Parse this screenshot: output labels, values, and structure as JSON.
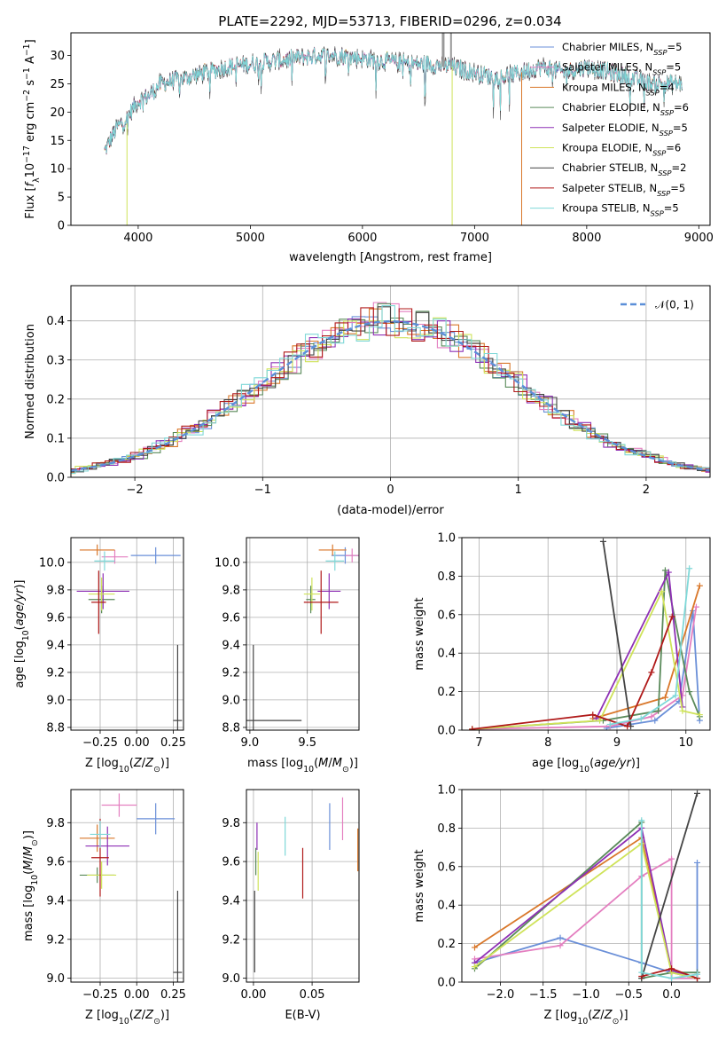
{
  "figure_title": "PLATE=2292, MJD=53713, FIBERID=0296, z=0.034",
  "colors": {
    "Chabrier MILES": "#6a8fd8",
    "Salpeter MILES": "#e47fc0",
    "Kroupa MILES": "#d9772a",
    "Chabrier ELODIE": "#5a8a5a",
    "Salpeter ELODIE": "#8e30b5",
    "Kroupa ELODIE": "#cfe35a",
    "Chabrier STELIB": "#444444",
    "Salpeter STELIB": "#b01a1a",
    "Kroupa STELIB": "#7fd8d8",
    "normal": "#5b8fd8"
  },
  "chart_data": [
    {
      "id": "spectrum",
      "type": "line",
      "title": "PLATE=2292, MJD=53713, FIBERID=0296, z=0.034",
      "xlabel": "wavelength [Angstrom, rest frame]",
      "ylabel": "Flux [f_λ10^-17 erg cm^-2 s^-1 A^-1]",
      "xlim": [
        3400,
        9100
      ],
      "ylim": [
        0,
        34
      ],
      "xticks": [
        4000,
        5000,
        6000,
        7000,
        8000,
        9000
      ],
      "yticks": [
        0,
        5,
        10,
        15,
        20,
        25,
        30
      ],
      "legend_position": "top-right",
      "legend": [
        {
          "name": "Chabrier MILES",
          "nssp": "5"
        },
        {
          "name": "Salpeter MILES",
          "nssp": "5"
        },
        {
          "name": "Kroupa MILES",
          "nssp": "4"
        },
        {
          "name": "Chabrier ELODIE",
          "nssp": "6"
        },
        {
          "name": "Salpeter ELODIE",
          "nssp": "5"
        },
        {
          "name": "Kroupa ELODIE",
          "nssp": "6"
        },
        {
          "name": "Chabrier STELIB",
          "nssp": "2"
        },
        {
          "name": "Salpeter STELIB",
          "nssp": "5"
        },
        {
          "name": "Kroupa STELIB",
          "nssp": "5"
        }
      ],
      "continuum": [
        [
          3700,
          13
        ],
        [
          3800,
          17
        ],
        [
          3900,
          19
        ],
        [
          4000,
          22
        ],
        [
          4100,
          23
        ],
        [
          4200,
          25
        ],
        [
          4400,
          26
        ],
        [
          4600,
          27
        ],
        [
          4800,
          28
        ],
        [
          5000,
          28.5
        ],
        [
          5200,
          29
        ],
        [
          5400,
          29.5
        ],
        [
          5600,
          30
        ],
        [
          5800,
          30
        ],
        [
          6000,
          29.5
        ],
        [
          6200,
          29
        ],
        [
          6400,
          28.5
        ],
        [
          6600,
          28.5
        ],
        [
          6800,
          28
        ],
        [
          7000,
          27
        ],
        [
          7200,
          26
        ],
        [
          7400,
          27
        ],
        [
          7600,
          28
        ],
        [
          7800,
          27
        ],
        [
          8000,
          28
        ],
        [
          8200,
          27
        ],
        [
          8400,
          26
        ],
        [
          8600,
          25
        ],
        [
          8850,
          25
        ]
      ]
    },
    {
      "id": "residuals",
      "type": "step",
      "xlabel": "(data-model)/error",
      "ylabel": "Normed distribution",
      "xlim": [
        -2.5,
        2.5
      ],
      "ylim": [
        0,
        0.49
      ],
      "xticks": [
        -2,
        -1,
        0,
        1,
        2
      ],
      "yticks": [
        0.0,
        0.1,
        0.2,
        0.3,
        0.4
      ],
      "grid": true,
      "legend_position": "top-right",
      "legend_label": "N(0, 1)",
      "bin_width": 0.1
    },
    {
      "id": "age-vs-Z",
      "type": "errorbar",
      "xlabel": "Z [log10(Z/Z⊙)]",
      "ylabel": "age [log10(age/yr)]",
      "xlim": [
        -0.45,
        0.32
      ],
      "ylim": [
        8.78,
        10.18
      ],
      "xticks": [
        -0.25,
        0.0,
        0.25
      ],
      "yticks": [
        8.8,
        9.0,
        9.2,
        9.4,
        9.6,
        9.8,
        10.0
      ],
      "grid": true,
      "points": [
        {
          "model": "Chabrier MILES",
          "x": 0.13,
          "y": 10.05,
          "xerr": 0.17,
          "yerr": 0.06
        },
        {
          "model": "Salpeter MILES",
          "x": -0.15,
          "y": 10.04,
          "xerr": 0.09,
          "yerr": 0.05
        },
        {
          "model": "Kroupa MILES",
          "x": -0.27,
          "y": 10.09,
          "xerr": 0.12,
          "yerr": 0.04
        },
        {
          "model": "Chabrier ELODIE",
          "x": -0.24,
          "y": 9.73,
          "xerr": 0.09,
          "yerr": 0.1
        },
        {
          "model": "Salpeter ELODIE",
          "x": -0.23,
          "y": 9.79,
          "xerr": 0.18,
          "yerr": 0.13
        },
        {
          "model": "Kroupa ELODIE",
          "x": -0.24,
          "y": 9.77,
          "xerr": 0.09,
          "yerr": 0.12
        },
        {
          "model": "Chabrier STELIB",
          "x": 0.28,
          "y": 8.85,
          "xerr": 0.03,
          "yerr": 0.55
        },
        {
          "model": "Salpeter STELIB",
          "x": -0.26,
          "y": 9.71,
          "xerr": 0.05,
          "yerr": 0.23
        },
        {
          "model": "Kroupa STELIB",
          "x": -0.22,
          "y": 10.01,
          "xerr": 0.07,
          "yerr": 0.07
        }
      ]
    },
    {
      "id": "age-vs-mass",
      "type": "errorbar",
      "xlabel": "mass [log10(M/M⊙)]",
      "ylabel": "",
      "xlim": [
        8.97,
        9.95
      ],
      "ylim": [
        8.78,
        10.18
      ],
      "xticks": [
        9.0,
        9.5
      ],
      "yticks": [
        8.8,
        9.0,
        9.2,
        9.4,
        9.6,
        9.8,
        10.0
      ],
      "grid": true,
      "points": [
        {
          "model": "Chabrier MILES",
          "x": 9.83,
          "y": 10.05,
          "xerr": 0.12,
          "yerr": 0.06
        },
        {
          "model": "Salpeter MILES",
          "x": 9.89,
          "y": 10.05,
          "xerr": 0.06,
          "yerr": 0.05
        },
        {
          "model": "Kroupa MILES",
          "x": 9.72,
          "y": 10.09,
          "xerr": 0.12,
          "yerr": 0.04
        },
        {
          "model": "Chabrier ELODIE",
          "x": 9.53,
          "y": 9.73,
          "xerr": 0.04,
          "yerr": 0.1
        },
        {
          "model": "Salpeter ELODIE",
          "x": 9.69,
          "y": 9.79,
          "xerr": 0.1,
          "yerr": 0.13
        },
        {
          "model": "Kroupa ELODIE",
          "x": 9.54,
          "y": 9.77,
          "xerr": 0.07,
          "yerr": 0.12
        },
        {
          "model": "Chabrier STELIB",
          "x": 9.03,
          "y": 8.85,
          "xerr": 0.42,
          "yerr": 0.55
        },
        {
          "model": "Salpeter STELIB",
          "x": 9.62,
          "y": 9.71,
          "xerr": 0.15,
          "yerr": 0.23
        },
        {
          "model": "Kroupa STELIB",
          "x": 9.74,
          "y": 10.01,
          "xerr": 0.08,
          "yerr": 0.07
        }
      ]
    },
    {
      "id": "weight-vs-age",
      "type": "line",
      "xlabel": "age [log10(age/yr)]",
      "ylabel": "mass weight",
      "xlim": [
        6.75,
        10.35
      ],
      "ylim": [
        0,
        1.0
      ],
      "xticks": [
        7,
        8,
        9,
        10
      ],
      "yticks": [
        0.0,
        0.2,
        0.4,
        0.6,
        0.8,
        1.0
      ],
      "grid": true,
      "series": [
        {
          "model": "Chabrier MILES",
          "points": [
            [
              8.85,
              0.01
            ],
            [
              9.2,
              0.03
            ],
            [
              9.55,
              0.05
            ],
            [
              9.9,
              0.15
            ],
            [
              10.1,
              0.62
            ],
            [
              10.2,
              0.05
            ]
          ]
        },
        {
          "model": "Salpeter MILES",
          "points": [
            [
              6.9,
              0.005
            ],
            [
              8.9,
              0.02
            ],
            [
              9.5,
              0.07
            ],
            [
              9.95,
              0.18
            ],
            [
              10.15,
              0.64
            ]
          ]
        },
        {
          "model": "Kroupa MILES",
          "points": [
            [
              8.65,
              0.06
            ],
            [
              9.7,
              0.17
            ],
            [
              10.2,
              0.75
            ]
          ]
        },
        {
          "model": "Chabrier ELODIE",
          "points": [
            [
              6.9,
              0.005
            ],
            [
              8.8,
              0.05
            ],
            [
              9.6,
              0.1
            ],
            [
              9.7,
              0.83
            ],
            [
              10.05,
              0.2
            ],
            [
              10.2,
              0.07
            ]
          ]
        },
        {
          "model": "Salpeter ELODIE",
          "points": [
            [
              8.7,
              0.06
            ],
            [
              9.75,
              0.82
            ],
            [
              9.95,
              0.12
            ]
          ]
        },
        {
          "model": "Kroupa ELODIE",
          "points": [
            [
              6.9,
              0.005
            ],
            [
              8.75,
              0.05
            ],
            [
              9.65,
              0.72
            ],
            [
              9.95,
              0.1
            ],
            [
              10.2,
              0.08
            ]
          ]
        },
        {
          "model": "Chabrier STELIB",
          "points": [
            [
              8.8,
              0.98
            ],
            [
              9.2,
              0.02
            ]
          ]
        },
        {
          "model": "Salpeter STELIB",
          "points": [
            [
              6.9,
              0.005
            ],
            [
              8.65,
              0.08
            ],
            [
              9.15,
              0.02
            ],
            [
              9.5,
              0.3
            ],
            [
              9.8,
              0.59
            ]
          ]
        },
        {
          "model": "Kroupa STELIB",
          "points": [
            [
              8.9,
              0.03
            ],
            [
              9.35,
              0.06
            ],
            [
              9.85,
              0.18
            ],
            [
              10.05,
              0.84
            ]
          ]
        }
      ]
    },
    {
      "id": "mass-vs-Z",
      "type": "errorbar",
      "xlabel": "Z [log10(Z/Z⊙)]",
      "ylabel": "mass [log10(M/M⊙)]",
      "xlim": [
        -0.45,
        0.32
      ],
      "ylim": [
        8.98,
        9.97
      ],
      "xticks": [
        -0.25,
        0.0,
        0.25
      ],
      "yticks": [
        9.0,
        9.2,
        9.4,
        9.6,
        9.8
      ],
      "grid": true,
      "points": [
        {
          "model": "Chabrier MILES",
          "x": 0.13,
          "y": 9.82,
          "xerr": 0.13,
          "yerr": 0.08
        },
        {
          "model": "Salpeter MILES",
          "x": -0.12,
          "y": 9.89,
          "xerr": 0.12,
          "yerr": 0.06
        },
        {
          "model": "Kroupa MILES",
          "x": -0.27,
          "y": 9.72,
          "xerr": 0.12,
          "yerr": 0.07
        },
        {
          "model": "Chabrier ELODIE",
          "x": -0.27,
          "y": 9.53,
          "xerr": 0.12,
          "yerr": 0.04
        },
        {
          "model": "Salpeter ELODIE",
          "x": -0.2,
          "y": 9.68,
          "xerr": 0.15,
          "yerr": 0.1
        },
        {
          "model": "Kroupa ELODIE",
          "x": -0.24,
          "y": 9.53,
          "xerr": 0.1,
          "yerr": 0.07
        },
        {
          "model": "Chabrier STELIB",
          "x": 0.28,
          "y": 9.03,
          "xerr": 0.03,
          "yerr": 0.42
        },
        {
          "model": "Salpeter STELIB",
          "x": -0.25,
          "y": 9.62,
          "xerr": 0.06,
          "yerr": 0.2
        },
        {
          "model": "Kroupa STELIB",
          "x": -0.25,
          "y": 9.74,
          "xerr": 0.07,
          "yerr": 0.07
        }
      ]
    },
    {
      "id": "mass-vs-ebv",
      "type": "errorbar",
      "xlabel": "E(B-V)",
      "ylabel": "",
      "xlim": [
        -0.006,
        0.09
      ],
      "ylim": [
        8.98,
        9.97
      ],
      "xticks": [
        0.0,
        0.05
      ],
      "yticks": [
        9.0,
        9.2,
        9.4,
        9.6,
        9.8
      ],
      "grid": true,
      "points": [
        {
          "model": "Chabrier MILES",
          "x": 0.065,
          "y": 9.78,
          "yerr": 0.12
        },
        {
          "model": "Salpeter MILES",
          "x": 0.076,
          "y": 9.82,
          "yerr": 0.11
        },
        {
          "model": "Kroupa MILES",
          "x": 0.089,
          "y": 9.66,
          "yerr": 0.11
        },
        {
          "model": "Chabrier ELODIE",
          "x": 0.002,
          "y": 9.6,
          "yerr": 0.07
        },
        {
          "model": "Salpeter ELODIE",
          "x": 0.003,
          "y": 9.73,
          "yerr": 0.07
        },
        {
          "model": "Kroupa ELODIE",
          "x": 0.004,
          "y": 9.55,
          "yerr": 0.1
        },
        {
          "model": "Chabrier STELIB",
          "x": 0.001,
          "y": 9.24,
          "yerr": 0.21
        },
        {
          "model": "Salpeter STELIB",
          "x": 0.042,
          "y": 9.54,
          "yerr": 0.13
        },
        {
          "model": "Kroupa STELIB",
          "x": 0.027,
          "y": 9.73,
          "yerr": 0.1
        }
      ]
    },
    {
      "id": "weight-vs-Z",
      "type": "line",
      "xlabel": "Z [log10(Z/Z⊙)]",
      "ylabel": "mass weight",
      "xlim": [
        -2.45,
        0.45
      ],
      "ylim": [
        0,
        1.0
      ],
      "xticks": [
        -2.0,
        -1.5,
        -1.0,
        -0.5,
        0.0
      ],
      "yticks": [
        0.0,
        0.2,
        0.4,
        0.6,
        0.8,
        1.0
      ],
      "grid": true,
      "series": [
        {
          "model": "Chabrier MILES",
          "points": [
            [
              -2.3,
              0.1
            ],
            [
              -1.3,
              0.23
            ],
            [
              -0.35,
              0.1
            ],
            [
              0.0,
              0.05
            ],
            [
              0.3,
              0.02
            ],
            [
              0.3,
              0.62
            ]
          ]
        },
        {
          "model": "Salpeter MILES",
          "points": [
            [
              -2.3,
              0.12
            ],
            [
              -1.3,
              0.19
            ],
            [
              -0.35,
              0.55
            ],
            [
              0.0,
              0.64
            ],
            [
              0.0,
              0.02
            ],
            [
              0.3,
              0.02
            ]
          ]
        },
        {
          "model": "Kroupa MILES",
          "points": [
            [
              -2.3,
              0.18
            ],
            [
              -0.35,
              0.75
            ],
            [
              0.0,
              0.05
            ],
            [
              0.3,
              0.02
            ]
          ]
        },
        {
          "model": "Chabrier ELODIE",
          "points": [
            [
              -2.3,
              0.07
            ],
            [
              -0.35,
              0.83
            ],
            [
              -0.35,
              0.02
            ],
            [
              0.0,
              0.05
            ],
            [
              0.3,
              0.05
            ]
          ]
        },
        {
          "model": "Salpeter ELODIE",
          "points": [
            [
              -2.3,
              0.1
            ],
            [
              -0.35,
              0.8
            ],
            [
              0.0,
              0.06
            ],
            [
              0.3,
              0.02
            ]
          ]
        },
        {
          "model": "Kroupa ELODIE",
          "points": [
            [
              -2.3,
              0.08
            ],
            [
              -0.35,
              0.72
            ],
            [
              0.0,
              0.05
            ],
            [
              0.3,
              0.02
            ]
          ]
        },
        {
          "model": "Chabrier STELIB",
          "points": [
            [
              -0.35,
              0.02
            ],
            [
              0.3,
              0.98
            ]
          ]
        },
        {
          "model": "Salpeter STELIB",
          "points": [
            [
              -0.35,
              0.03
            ],
            [
              0.0,
              0.07
            ],
            [
              0.3,
              0.02
            ]
          ]
        },
        {
          "model": "Kroupa STELIB",
          "points": [
            [
              -0.35,
              0.84
            ],
            [
              -0.35,
              0.05
            ],
            [
              0.0,
              0.02
            ],
            [
              0.3,
              0.04
            ]
          ]
        }
      ]
    }
  ]
}
